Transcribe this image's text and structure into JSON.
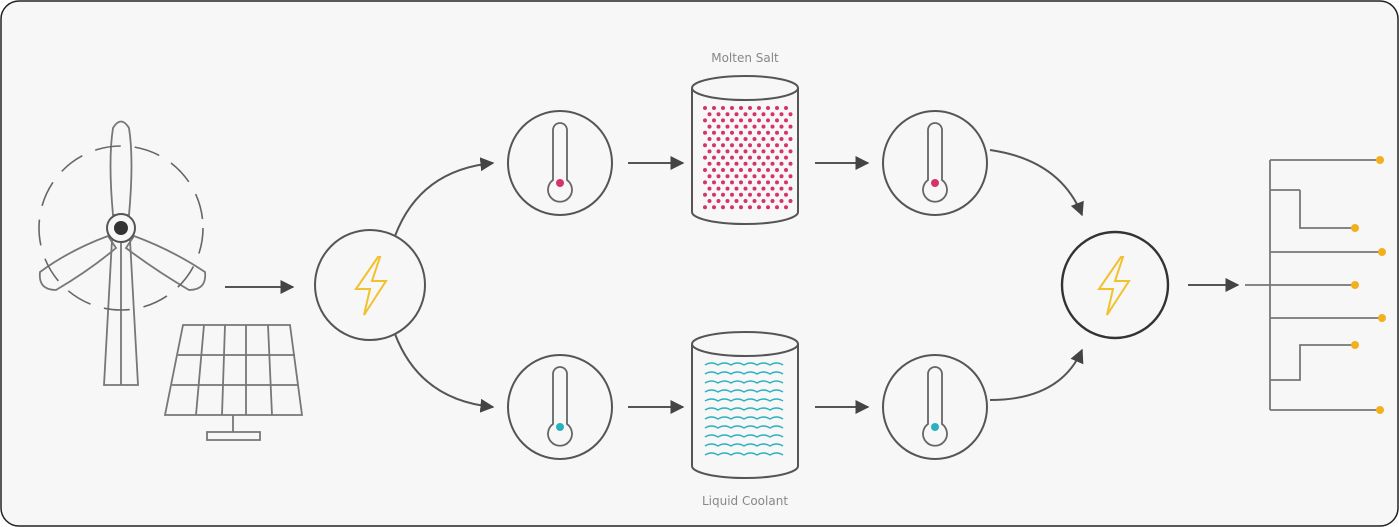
{
  "labels": {
    "top_storage": "Molten Salt",
    "bottom_storage": "Liquid Coolant"
  }
}
